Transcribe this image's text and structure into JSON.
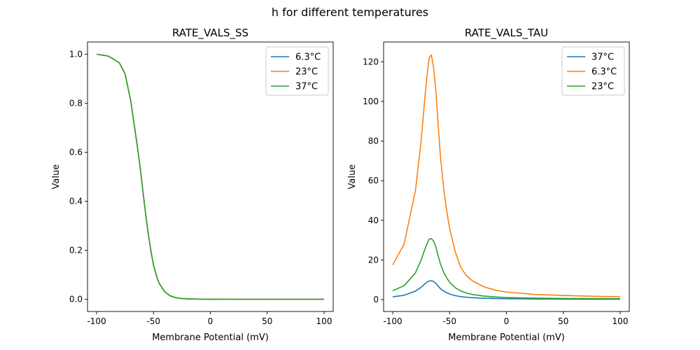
{
  "figure": {
    "suptitle": "h for different temperatures"
  },
  "chart_data": [
    {
      "type": "line",
      "title": "RATE_VALS_SS",
      "xlabel": "Membrane Potential (mV)",
      "ylabel": "Value",
      "xlim": [
        -108,
        108
      ],
      "ylim": [
        -0.05,
        1.05
      ],
      "xticks": [
        "-100",
        "-50",
        "0",
        "50",
        "100"
      ],
      "yticks": [
        "0.0",
        "0.2",
        "0.4",
        "0.6",
        "0.8",
        "1.0"
      ],
      "grid": false,
      "legend": "top-right",
      "x": [
        -100,
        -90,
        -85,
        -80,
        -75,
        -70,
        -65,
        -62,
        -60,
        -58,
        -55,
        -52,
        -50,
        -47,
        -45,
        -40,
        -35,
        -30,
        -25,
        -20,
        -10,
        0,
        25,
        50,
        75,
        100
      ],
      "series": [
        {
          "name": "6.3°C",
          "color": "#1f77b4",
          "values": [
            1.0,
            0.993,
            0.98,
            0.965,
            0.92,
            0.81,
            0.65,
            0.55,
            0.47,
            0.39,
            0.28,
            0.19,
            0.14,
            0.09,
            0.065,
            0.03,
            0.013,
            0.006,
            0.003,
            0.0015,
            0.0005,
            0.0002,
            0.0,
            0.0,
            0.0,
            0.0
          ]
        },
        {
          "name": "23°C",
          "color": "#ff7f0e",
          "values": [
            1.0,
            0.993,
            0.98,
            0.965,
            0.92,
            0.81,
            0.65,
            0.55,
            0.47,
            0.39,
            0.28,
            0.19,
            0.14,
            0.09,
            0.065,
            0.03,
            0.013,
            0.006,
            0.003,
            0.0015,
            0.0005,
            0.0002,
            0.0,
            0.0,
            0.0,
            0.0
          ]
        },
        {
          "name": "37°C",
          "color": "#2ca02c",
          "values": [
            1.0,
            0.993,
            0.98,
            0.965,
            0.92,
            0.81,
            0.65,
            0.55,
            0.47,
            0.39,
            0.28,
            0.19,
            0.14,
            0.09,
            0.065,
            0.03,
            0.013,
            0.006,
            0.003,
            0.0015,
            0.0005,
            0.0002,
            0.0,
            0.0,
            0.0,
            0.0
          ]
        }
      ]
    },
    {
      "type": "line",
      "title": "RATE_VALS_TAU",
      "xlabel": "Membrane Potential (mV)",
      "ylabel": "Value",
      "xlim": [
        -108,
        108
      ],
      "ylim": [
        -6,
        130
      ],
      "xticks": [
        "-100",
        "-50",
        "0",
        "50",
        "100"
      ],
      "yticks": [
        "0",
        "20",
        "40",
        "60",
        "80",
        "100",
        "120"
      ],
      "grid": false,
      "legend": "top-right",
      "x": [
        -100,
        -90,
        -80,
        -75,
        -72,
        -70,
        -68,
        -66,
        -64,
        -62,
        -60,
        -58,
        -55,
        -52,
        -50,
        -45,
        -40,
        -35,
        -30,
        -20,
        -10,
        0,
        25,
        50,
        75,
        100
      ],
      "series": [
        {
          "name": "37°C",
          "color": "#1f77b4",
          "values": [
            1.4,
            2.2,
            4.3,
            6.2,
            7.8,
            8.8,
            9.4,
            9.5,
            9.2,
            8.2,
            6.8,
            5.5,
            4.2,
            3.4,
            2.8,
            2.0,
            1.5,
            1.2,
            0.95,
            0.7,
            0.55,
            0.45,
            0.32,
            0.26,
            0.22,
            0.2
          ]
        },
        {
          "name": "6.3°C",
          "color": "#ff7f0e",
          "values": [
            17.5,
            28,
            55,
            80,
            100,
            112,
            122,
            123.5,
            117,
            105,
            88,
            72,
            55,
            43,
            36,
            24,
            16,
            12,
            9.5,
            6.5,
            4.8,
            3.8,
            2.6,
            2.1,
            1.7,
            1.4
          ]
        },
        {
          "name": "23°C",
          "color": "#2ca02c",
          "values": [
            4.5,
            7,
            13.5,
            20,
            25,
            28,
            30.5,
            30.8,
            29.5,
            26.5,
            22,
            18,
            13.5,
            10.5,
            8.8,
            6.0,
            4.3,
            3.3,
            2.6,
            1.8,
            1.35,
            1.05,
            0.72,
            0.58,
            0.5,
            0.43
          ]
        }
      ]
    }
  ]
}
